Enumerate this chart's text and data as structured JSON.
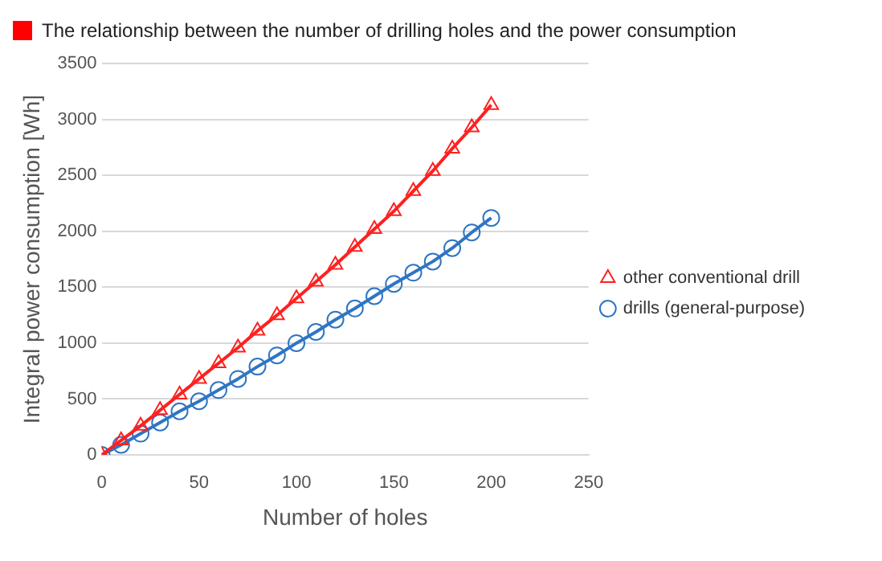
{
  "chart_data": {
    "type": "line",
    "title": "The relationship between the number of drilling holes and the power consumption",
    "xlabel": "Number of holes",
    "ylabel": "Integral power consumption [Wh]",
    "x": [
      0,
      10,
      20,
      30,
      40,
      50,
      60,
      70,
      80,
      90,
      100,
      110,
      120,
      130,
      140,
      150,
      160,
      170,
      180,
      190,
      200
    ],
    "series": [
      {
        "name": "drills (general-purpose)",
        "color": "#2e75c4",
        "marker": "circle",
        "values": [
          0,
          90,
          190,
          290,
          390,
          480,
          580,
          680,
          790,
          890,
          1000,
          1100,
          1210,
          1310,
          1420,
          1530,
          1630,
          1730,
          1850,
          1990,
          2120
        ]
      },
      {
        "name": "other conventional drill",
        "color": "#ff2020",
        "marker": "triangle",
        "values": [
          0,
          130,
          260,
          400,
          540,
          680,
          820,
          960,
          1110,
          1250,
          1400,
          1550,
          1700,
          1860,
          2020,
          2180,
          2360,
          2540,
          2740,
          2930,
          3130
        ]
      }
    ],
    "xlim": [
      0,
      250
    ],
    "xticks": [
      0,
      50,
      100,
      150,
      200,
      250
    ],
    "ylim": [
      0,
      3500
    ],
    "yticks": [
      0,
      500,
      1000,
      1500,
      2000,
      2500,
      3000,
      3500
    ],
    "grid": "y",
    "legend": "right",
    "line_style": "solid"
  }
}
